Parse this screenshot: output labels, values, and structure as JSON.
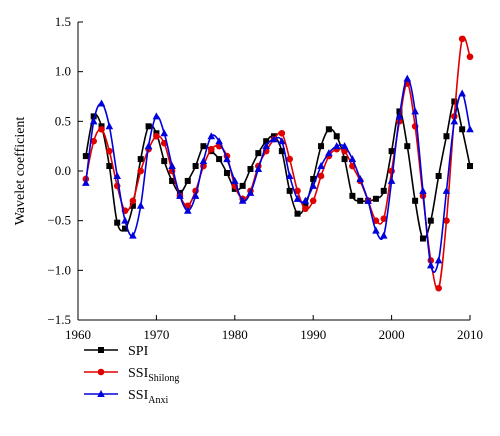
{
  "chart_data": {
    "type": "line",
    "xlabel": "",
    "ylabel": "Wavelet coefficient",
    "xlim": [
      1960,
      2010
    ],
    "ylim": [
      -1.5,
      1.5
    ],
    "xticks": [
      1960,
      1970,
      1980,
      1990,
      2000,
      2010
    ],
    "yticks": [
      -1.5,
      -1.0,
      -0.5,
      0.0,
      0.5,
      1.0,
      1.5
    ],
    "xtick_labels": [
      "1960",
      "1970",
      "1980",
      "1990",
      "2000",
      "2010"
    ],
    "ytick_labels": [
      "−1.5",
      "−1.0",
      "−0.5",
      "0.0",
      "0.5",
      "1.0",
      "1.5"
    ],
    "grid": false,
    "legend_position": "bottom-left",
    "series": [
      {
        "name": "SPI",
        "legend_main": "SPI",
        "legend_sub": "",
        "color": "#000000",
        "marker": "square",
        "x": [
          1961,
          1962,
          1963,
          1964,
          1965,
          1966,
          1967,
          1968,
          1969,
          1970,
          1971,
          1972,
          1973,
          1974,
          1975,
          1976,
          1977,
          1978,
          1979,
          1980,
          1981,
          1982,
          1983,
          1984,
          1985,
          1986,
          1987,
          1988,
          1989,
          1990,
          1991,
          1992,
          1993,
          1994,
          1995,
          1996,
          1997,
          1998,
          1999,
          2000,
          2001,
          2002,
          2003,
          2004,
          2005,
          2006,
          2007,
          2008,
          2009,
          2010
        ],
        "y": [
          0.15,
          0.55,
          0.45,
          0.05,
          -0.52,
          -0.58,
          -0.35,
          0.12,
          0.45,
          0.38,
          0.1,
          -0.1,
          -0.22,
          -0.1,
          0.05,
          0.25,
          0.2,
          0.12,
          -0.02,
          -0.18,
          -0.15,
          0.02,
          0.18,
          0.3,
          0.35,
          0.2,
          -0.2,
          -0.43,
          -0.35,
          -0.08,
          0.25,
          0.42,
          0.35,
          0.12,
          -0.25,
          -0.3,
          -0.3,
          -0.28,
          -0.2,
          0.2,
          0.6,
          0.25,
          -0.3,
          -0.68,
          -0.5,
          -0.05,
          0.35,
          0.7,
          0.42,
          0.05
        ]
      },
      {
        "name": "SSI Shilong",
        "legend_main": "SSI",
        "legend_sub": "Shilong",
        "color": "#e00000",
        "marker": "circle",
        "x": [
          1961,
          1962,
          1963,
          1964,
          1965,
          1966,
          1967,
          1968,
          1969,
          1970,
          1971,
          1972,
          1973,
          1974,
          1975,
          1976,
          1977,
          1978,
          1979,
          1980,
          1981,
          1982,
          1983,
          1984,
          1985,
          1986,
          1987,
          1988,
          1989,
          1990,
          1991,
          1992,
          1993,
          1994,
          1995,
          1996,
          1997,
          1998,
          1999,
          2000,
          2001,
          2002,
          2003,
          2004,
          2005,
          2006,
          2007,
          2008,
          2009,
          2010
        ],
        "y": [
          -0.08,
          0.3,
          0.42,
          0.2,
          -0.15,
          -0.4,
          -0.3,
          0.0,
          0.22,
          0.35,
          0.28,
          0.0,
          -0.25,
          -0.35,
          -0.2,
          0.05,
          0.22,
          0.25,
          0.15,
          -0.15,
          -0.28,
          -0.2,
          0.05,
          0.2,
          0.32,
          0.38,
          0.12,
          -0.2,
          -0.38,
          -0.3,
          -0.05,
          0.15,
          0.22,
          0.2,
          0.05,
          -0.1,
          -0.3,
          -0.5,
          -0.48,
          0.0,
          0.5,
          0.88,
          0.45,
          -0.25,
          -0.9,
          -1.18,
          -0.5,
          0.55,
          1.33,
          1.15
        ]
      },
      {
        "name": "SSI Anxi",
        "legend_main": "SSI",
        "legend_sub": "Anxi",
        "color": "#0000dd",
        "marker": "triangle",
        "x": [
          1961,
          1962,
          1963,
          1964,
          1965,
          1966,
          1967,
          1968,
          1969,
          1970,
          1971,
          1972,
          1973,
          1974,
          1975,
          1976,
          1977,
          1978,
          1979,
          1980,
          1981,
          1982,
          1983,
          1984,
          1985,
          1986,
          1987,
          1988,
          1989,
          1990,
          1991,
          1992,
          1993,
          1994,
          1995,
          1996,
          1997,
          1998,
          1999,
          2000,
          2001,
          2002,
          2003,
          2004,
          2005,
          2006,
          2007,
          2008,
          2009,
          2010
        ],
        "y": [
          -0.12,
          0.5,
          0.68,
          0.45,
          -0.05,
          -0.5,
          -0.65,
          -0.35,
          0.25,
          0.55,
          0.38,
          0.05,
          -0.25,
          -0.4,
          -0.25,
          0.1,
          0.35,
          0.3,
          0.12,
          -0.1,
          -0.3,
          -0.22,
          0.02,
          0.25,
          0.32,
          0.3,
          -0.05,
          -0.28,
          -0.3,
          -0.15,
          0.05,
          0.18,
          0.25,
          0.25,
          0.12,
          -0.08,
          -0.3,
          -0.6,
          -0.65,
          -0.1,
          0.55,
          0.93,
          0.6,
          -0.2,
          -0.95,
          -0.9,
          -0.2,
          0.5,
          0.78,
          0.42
        ]
      }
    ]
  }
}
